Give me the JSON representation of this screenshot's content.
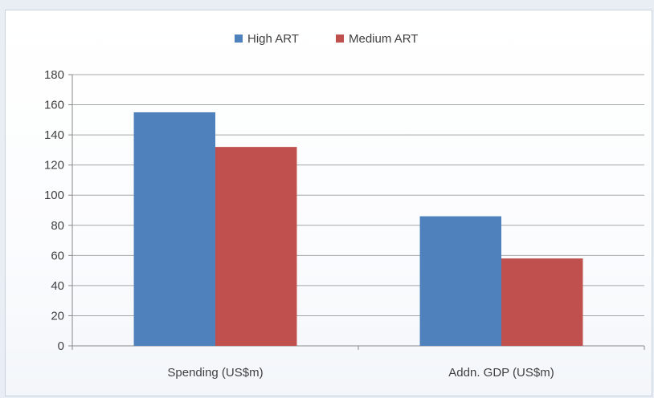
{
  "chart_data": {
    "type": "bar",
    "categories": [
      "Spending (US$m)",
      "Addn. GDP (US$m)"
    ],
    "series": [
      {
        "name": "High ART",
        "values": [
          155,
          86
        ],
        "color": "#4f81bd"
      },
      {
        "name": "Medium ART",
        "values": [
          132,
          58
        ],
        "color": "#c0504d"
      }
    ],
    "ylim": [
      0,
      180
    ],
    "yticks": [
      0,
      20,
      40,
      60,
      80,
      100,
      120,
      140,
      160,
      180
    ],
    "grid": true,
    "legend": "top-center",
    "title": "",
    "xlabel": "",
    "ylabel": ""
  }
}
